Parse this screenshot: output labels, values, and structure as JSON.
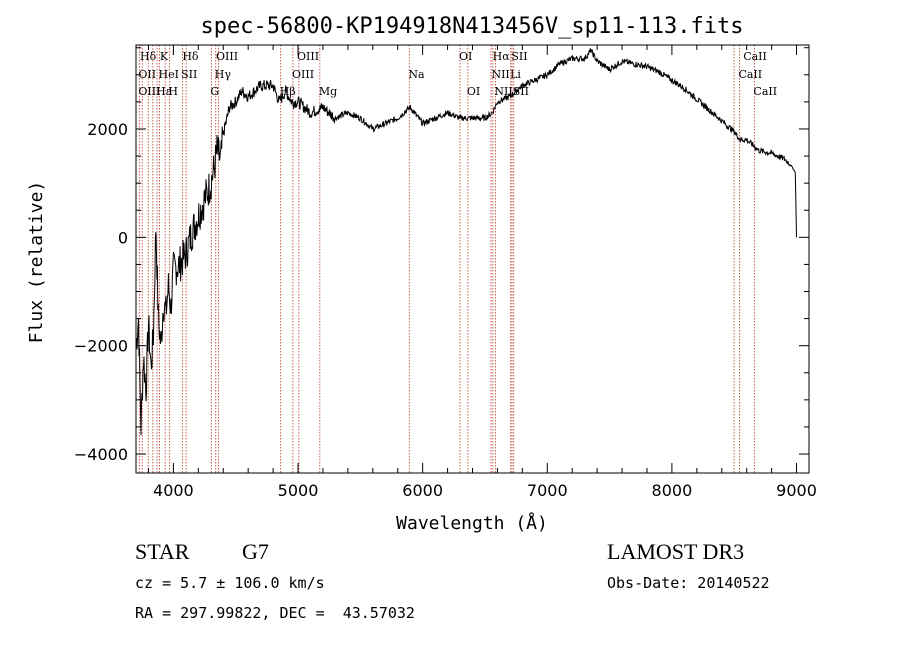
{
  "chart_data": {
    "type": "line",
    "title": "spec-56800-KP194918N413456V_sp11-113.fits",
    "xlabel": "Wavelength (Å)",
    "ylabel": "Flux (relative)",
    "xlim": [
      3700,
      9100
    ],
    "ylim": [
      -4350,
      3550
    ],
    "x_ticks": [
      4000,
      5000,
      6000,
      7000,
      8000,
      9000
    ],
    "x_tick_labels": [
      "4000",
      "5000",
      "6000",
      "7000",
      "8000",
      "9000"
    ],
    "y_ticks": [
      -4000,
      -2000,
      0,
      2000
    ],
    "y_tick_labels": [
      "−4000",
      "−2000",
      "0",
      "2000"
    ],
    "grid": false,
    "series": [
      {
        "name": "flux",
        "x": [
          3700,
          3720,
          3740,
          3760,
          3780,
          3800,
          3820,
          3840,
          3860,
          3880,
          3900,
          3920,
          3940,
          3960,
          3980,
          4000,
          4050,
          4100,
          4150,
          4200,
          4250,
          4300,
          4330,
          4350,
          4380,
          4400,
          4450,
          4500,
          4550,
          4600,
          4700,
          4800,
          4850,
          4900,
          4950,
          5000,
          5100,
          5200,
          5300,
          5400,
          5500,
          5600,
          5700,
          5800,
          5900,
          6000,
          6100,
          6200,
          6300,
          6400,
          6500,
          6560,
          6600,
          6700,
          6800,
          6900,
          7000,
          7100,
          7200,
          7300,
          7350,
          7400,
          7500,
          7600,
          7700,
          7800,
          7900,
          8000,
          8100,
          8200,
          8300,
          8400,
          8500,
          8550,
          8600,
          8700,
          8800,
          8900,
          8950,
          8990,
          9000
        ],
        "values": [
          -2000,
          -1500,
          -3500,
          -2200,
          -2800,
          -1600,
          -2400,
          -1800,
          200,
          -1500,
          -2000,
          -1200,
          -1400,
          -900,
          -1300,
          -600,
          -500,
          -300,
          100,
          400,
          700,
          1000,
          1300,
          1600,
          1400,
          1900,
          2400,
          2500,
          2700,
          2600,
          2800,
          2800,
          2500,
          2700,
          2500,
          2500,
          2300,
          2400,
          2200,
          2300,
          2200,
          2000,
          2100,
          2200,
          2400,
          2100,
          2200,
          2300,
          2200,
          2200,
          2200,
          2300,
          2500,
          2600,
          2800,
          2900,
          3000,
          3200,
          3300,
          3300,
          3450,
          3250,
          3100,
          3250,
          3200,
          3150,
          3050,
          2900,
          2750,
          2550,
          2350,
          2150,
          1950,
          1800,
          1800,
          1600,
          1550,
          1450,
          1350,
          1200,
          0
        ]
      }
    ],
    "annotations": [
      {
        "text": "Hδ",
        "x": 3740,
        "row": 1
      },
      {
        "text": "K",
        "x": 3900,
        "row": 1
      },
      {
        "text": "Hδ",
        "x": 4080,
        "row": 1
      },
      {
        "text": "OIII",
        "x": 4350,
        "row": 1
      },
      {
        "text": "OIII",
        "x": 5000,
        "row": 1
      },
      {
        "text": "OI",
        "x": 6300,
        "row": 1
      },
      {
        "text": "Hα",
        "x": 6570,
        "row": 1
      },
      {
        "text": "SII",
        "x": 6720,
        "row": 1
      },
      {
        "text": "CaII",
        "x": 8580,
        "row": 1
      },
      {
        "text": "OII",
        "x": 3727,
        "row": 2
      },
      {
        "text": "HeI",
        "x": 3889,
        "row": 2
      },
      {
        "text": "SII",
        "x": 4070,
        "row": 2
      },
      {
        "text": "Hγ",
        "x": 4340,
        "row": 2
      },
      {
        "text": "OIII",
        "x": 4960,
        "row": 2
      },
      {
        "text": "Na",
        "x": 5893,
        "row": 2
      },
      {
        "text": "NII",
        "x": 6560,
        "row": 2
      },
      {
        "text": "Li",
        "x": 6710,
        "row": 2
      },
      {
        "text": "CaII",
        "x": 8542,
        "row": 2
      },
      {
        "text": "OIII",
        "x": 3727,
        "row": 3
      },
      {
        "text": "Hε",
        "x": 3870,
        "row": 3
      },
      {
        "text": "H",
        "x": 3968,
        "row": 3
      },
      {
        "text": "G",
        "x": 4305,
        "row": 3
      },
      {
        "text": "Hβ",
        "x": 4861,
        "row": 3
      },
      {
        "text": "Mg",
        "x": 5175,
        "row": 3
      },
      {
        "text": "OI",
        "x": 6363,
        "row": 3
      },
      {
        "text": "NII",
        "x": 6584,
        "row": 3
      },
      {
        "text": "SII",
        "x": 6731,
        "row": 3
      },
      {
        "text": "CaII",
        "x": 8662,
        "row": 3
      }
    ],
    "line_markers": [
      3727,
      3750,
      3798,
      3835,
      3869,
      3889,
      3934,
      3970,
      4072,
      4102,
      4305,
      4340,
      4363,
      4861,
      4959,
      5007,
      5175,
      5893,
      6300,
      6363,
      6548,
      6563,
      6584,
      6707,
      6717,
      6731,
      8498,
      8542,
      8662
    ]
  },
  "info": {
    "object_class": "STAR",
    "subclass": "G7",
    "survey": "LAMOST DR3",
    "redshift_line": "cz = 5.7 ± 106.0 km/s",
    "obs_date_line": "Obs-Date: 20140522",
    "coords_line": "RA = 297.99822, DEC =  43.57032"
  },
  "colors": {
    "axes": "#000000",
    "spectrum": "#000000",
    "markers": "#c0392b"
  }
}
